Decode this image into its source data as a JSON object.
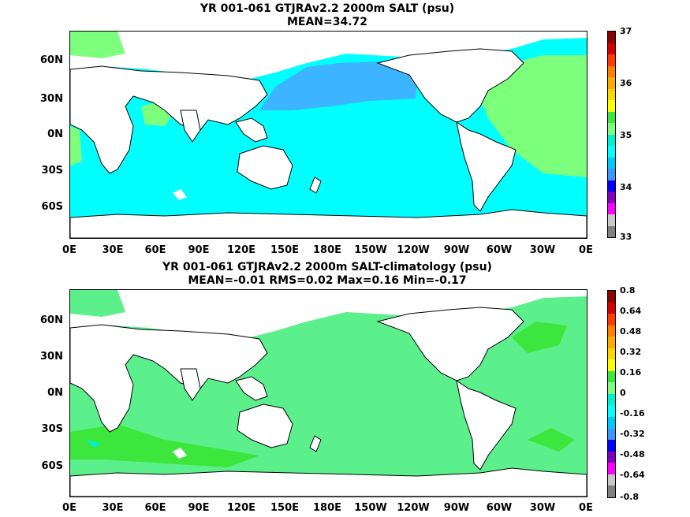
{
  "panels": [
    {
      "title_line1": "YR 001-061 GTJRAv2.2 2000m SALT (psu)",
      "title_line2": "MEAN=34.72",
      "colorbar_labels": [
        "37",
        "36",
        "35",
        "34",
        "33"
      ],
      "colorbar_colors": [
        "#8b0000",
        "#d40000",
        "#ff3c00",
        "#ff7f00",
        "#ffaa00",
        "#ffd700",
        "#ffff00",
        "#3ce63c",
        "#7cff7c",
        "#00f0d0",
        "#00ffff",
        "#00c8ff",
        "#3c96ff",
        "#0000ff",
        "#8000c0",
        "#ff00ff",
        "#c8c8c8",
        "#808080"
      ]
    },
    {
      "title_line1": "YR 001-061 GTJRAv2.2 2000m SALT-climatology (psu)",
      "title_line2": "MEAN=-0.01   RMS=0.02   Max=0.16   Min=-0.17",
      "colorbar_labels": [
        "0.8",
        "0.64",
        "0.48",
        "0.32",
        "0.16",
        "0",
        "-0.16",
        "-0.32",
        "-0.48",
        "-0.64",
        "-0.8"
      ],
      "colorbar_colors": [
        "#8b0000",
        "#d40000",
        "#ff3c00",
        "#ff7f00",
        "#ffaa00",
        "#ffd700",
        "#ffff00",
        "#3ce63c",
        "#7cff7c",
        "#00f0d0",
        "#00ffff",
        "#00c8ff",
        "#3c96ff",
        "#0000ff",
        "#8000c0",
        "#ff00ff",
        "#c8c8c8",
        "#808080"
      ]
    }
  ],
  "lat_labels": [
    "60N",
    "30N",
    "0N",
    "30S",
    "60S"
  ],
  "lon_labels": [
    "0E",
    "30E",
    "60E",
    "90E",
    "120E",
    "150E",
    "180E",
    "150W",
    "120W",
    "90W",
    "60W",
    "30W",
    "0E"
  ],
  "colors": {
    "ocean_top_main": "#00ffff",
    "ocean_top_pacific_north": "#3cb4ff",
    "ocean_top_atlantic": "#7cff7c",
    "ocean_bottom_main": "#5cf08c",
    "ocean_bottom_dark": "#3ce63c",
    "ocean_bottom_cyan": "#00f0d0",
    "land": "#ffffff",
    "coast": "#000000"
  }
}
